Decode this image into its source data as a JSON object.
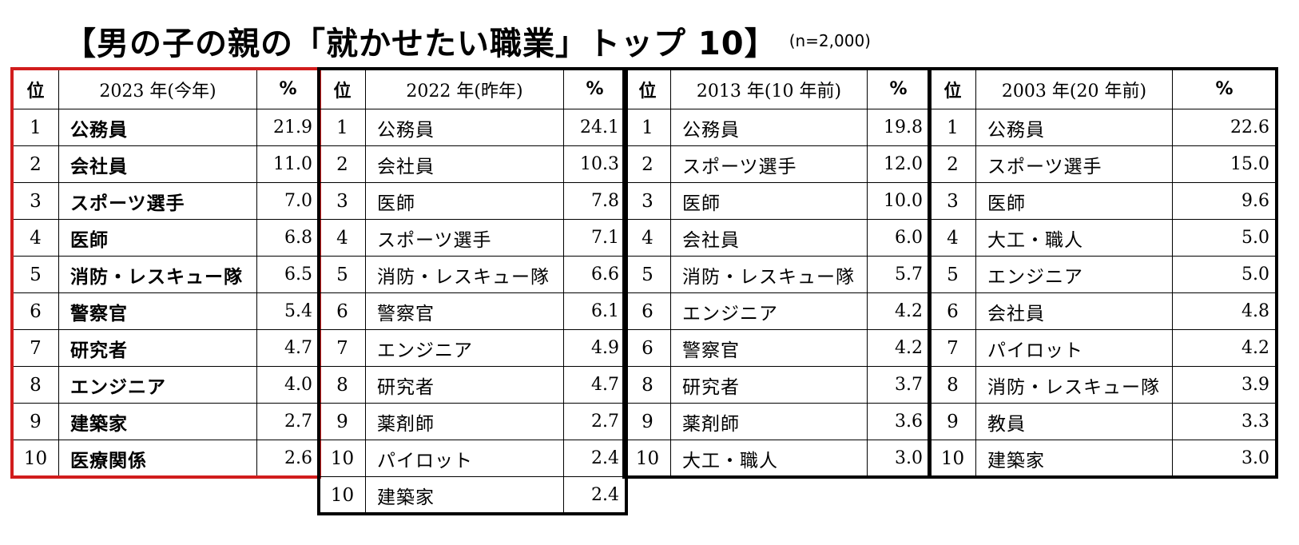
{
  "title": "【男の子の親の「就かせたい職業」トップ 10】",
  "sample_note": "(n=2,000)",
  "columns_header": {
    "rank": "位",
    "pct": "%"
  },
  "tables": [
    {
      "year_label": "2023 年(今年)",
      "highlight_color": "#d11d1d",
      "rows": [
        {
          "rank": "1",
          "job": "公務員",
          "pct": "21.9"
        },
        {
          "rank": "2",
          "job": "会社員",
          "pct": "11.0"
        },
        {
          "rank": "3",
          "job": "スポーツ選手",
          "pct": "7.0"
        },
        {
          "rank": "4",
          "job": "医師",
          "pct": "6.8"
        },
        {
          "rank": "5",
          "job": "消防・レスキュー隊",
          "pct": "6.5"
        },
        {
          "rank": "6",
          "job": "警察官",
          "pct": "5.4"
        },
        {
          "rank": "7",
          "job": "研究者",
          "pct": "4.7"
        },
        {
          "rank": "8",
          "job": "エンジニア",
          "pct": "4.0"
        },
        {
          "rank": "9",
          "job": "建築家",
          "pct": "2.7"
        },
        {
          "rank": "10",
          "job": "医療関係",
          "pct": "2.6"
        }
      ]
    },
    {
      "year_label": "2022 年(昨年)",
      "rows": [
        {
          "rank": "1",
          "job": "公務員",
          "pct": "24.1"
        },
        {
          "rank": "2",
          "job": "会社員",
          "pct": "10.3"
        },
        {
          "rank": "3",
          "job": "医師",
          "pct": "7.8"
        },
        {
          "rank": "4",
          "job": "スポーツ選手",
          "pct": "7.1"
        },
        {
          "rank": "5",
          "job": "消防・レスキュー隊",
          "pct": "6.6"
        },
        {
          "rank": "6",
          "job": "警察官",
          "pct": "6.1"
        },
        {
          "rank": "7",
          "job": "エンジニア",
          "pct": "4.9"
        },
        {
          "rank": "8",
          "job": "研究者",
          "pct": "4.7"
        },
        {
          "rank": "9",
          "job": "薬剤師",
          "pct": "2.7"
        },
        {
          "rank": "10",
          "job": "パイロット",
          "pct": "2.4"
        },
        {
          "rank": "10",
          "job": "建築家",
          "pct": "2.4"
        }
      ]
    },
    {
      "year_label": "2013 年(10 年前)",
      "rows": [
        {
          "rank": "1",
          "job": "公務員",
          "pct": "19.8"
        },
        {
          "rank": "2",
          "job": "スポーツ選手",
          "pct": "12.0"
        },
        {
          "rank": "3",
          "job": "医師",
          "pct": "10.0"
        },
        {
          "rank": "4",
          "job": "会社員",
          "pct": "6.0"
        },
        {
          "rank": "5",
          "job": "消防・レスキュー隊",
          "pct": "5.7"
        },
        {
          "rank": "6",
          "job": "エンジニア",
          "pct": "4.2"
        },
        {
          "rank": "6",
          "job": "警察官",
          "pct": "4.2"
        },
        {
          "rank": "8",
          "job": "研究者",
          "pct": "3.7"
        },
        {
          "rank": "9",
          "job": "薬剤師",
          "pct": "3.6"
        },
        {
          "rank": "10",
          "job": "大工・職人",
          "pct": "3.0"
        }
      ]
    },
    {
      "year_label": "2003 年(20 年前)",
      "rows": [
        {
          "rank": "1",
          "job": "公務員",
          "pct": "22.6"
        },
        {
          "rank": "2",
          "job": "スポーツ選手",
          "pct": "15.0"
        },
        {
          "rank": "3",
          "job": "医師",
          "pct": "9.6"
        },
        {
          "rank": "4",
          "job": "大工・職人",
          "pct": "5.0"
        },
        {
          "rank": "5",
          "job": "エンジニア",
          "pct": "5.0"
        },
        {
          "rank": "6",
          "job": "会社員",
          "pct": "4.8"
        },
        {
          "rank": "7",
          "job": "パイロット",
          "pct": "4.2"
        },
        {
          "rank": "8",
          "job": "消防・レスキュー隊",
          "pct": "3.9"
        },
        {
          "rank": "9",
          "job": "教員",
          "pct": "3.3"
        },
        {
          "rank": "10",
          "job": "建築家",
          "pct": "3.0"
        }
      ]
    }
  ]
}
